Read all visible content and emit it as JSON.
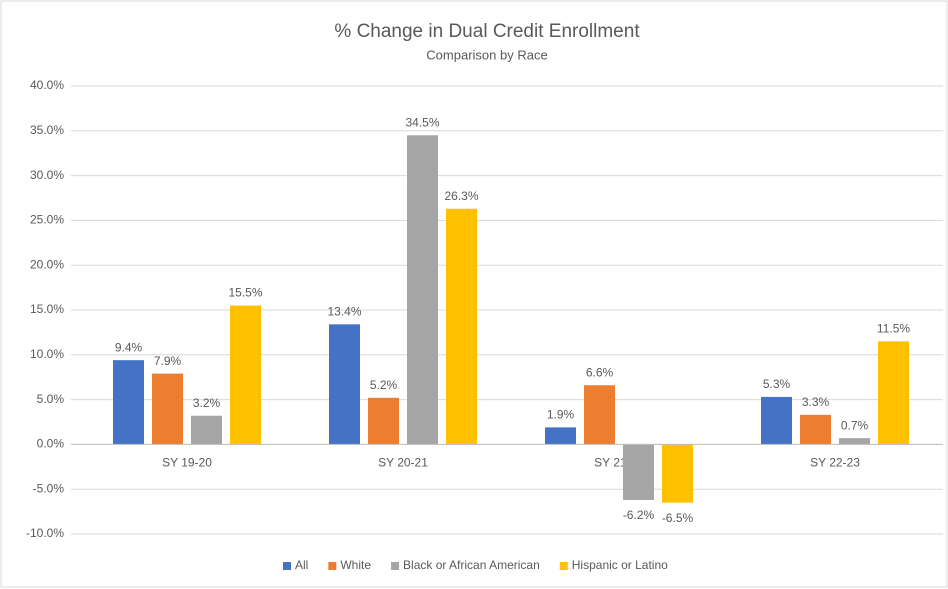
{
  "chart_data": {
    "type": "bar",
    "title": "% Change in Dual Credit Enrollment",
    "subtitle": "Comparison by Race",
    "categories": [
      "SY 19-20",
      "SY 20-21",
      "SY 21-22",
      "SY 22-23"
    ],
    "series": [
      {
        "name": "All",
        "color": "#4472c4",
        "values": [
          9.4,
          13.4,
          1.9,
          5.3
        ],
        "value_labels": [
          "9.4%",
          "13.4%",
          "1.9%",
          "5.3%"
        ]
      },
      {
        "name": "White",
        "color": "#ed7d31",
        "values": [
          7.9,
          5.2,
          6.6,
          3.3
        ],
        "value_labels": [
          "7.9%",
          "5.2%",
          "6.6%",
          "3.3%"
        ]
      },
      {
        "name": "Black or African American",
        "color": "#a5a5a5",
        "values": [
          3.2,
          34.5,
          -6.2,
          0.7
        ],
        "value_labels": [
          "3.2%",
          "34.5%",
          "-6.2%",
          "0.7%"
        ]
      },
      {
        "name": "Hispanic or Latino",
        "color": "#ffc000",
        "values": [
          15.5,
          26.3,
          -6.5,
          11.5
        ],
        "value_labels": [
          "15.5%",
          "26.3%",
          "-6.5%",
          "11.5%"
        ]
      }
    ],
    "ylim": [
      -10,
      40
    ],
    "yticks": [
      {
        "value": -10,
        "label": "-10.0%"
      },
      {
        "value": -5,
        "label": "-5.0%"
      },
      {
        "value": 0,
        "label": "0.0%"
      },
      {
        "value": 5,
        "label": "5.0%"
      },
      {
        "value": 10,
        "label": "10.0%"
      },
      {
        "value": 15,
        "label": "15.0%"
      },
      {
        "value": 20,
        "label": "20.0%"
      },
      {
        "value": 25,
        "label": "25.0%"
      },
      {
        "value": 30,
        "label": "30.0%"
      },
      {
        "value": 35,
        "label": "35.0%"
      },
      {
        "value": 40,
        "label": "40.0%"
      }
    ],
    "grid": true,
    "legend": "bottom"
  }
}
